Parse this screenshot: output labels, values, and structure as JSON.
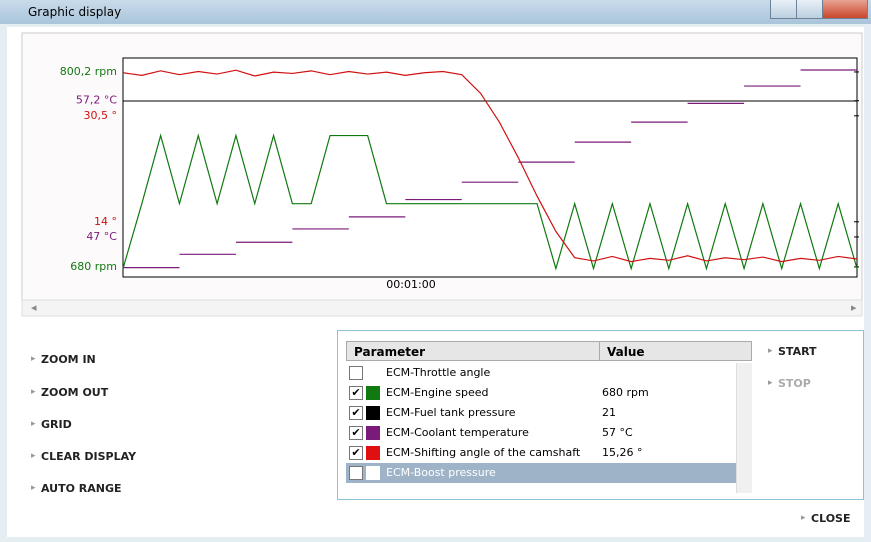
{
  "window": {
    "title": "Graphic display"
  },
  "graph": {
    "x_label": "00:01:00",
    "series": [
      {
        "name": "ECM-Engine speed",
        "color": "#107a10",
        "ylim": [
          673.8,
          808.8
        ],
        "ticks": [
          {
            "value": 800.2,
            "label": "800,2 rpm"
          },
          {
            "value": 680,
            "label": "680 rpm"
          }
        ],
        "values": [
          679,
          719,
          761,
          719,
          761,
          719,
          761,
          719,
          761,
          719,
          719,
          761,
          761,
          761,
          719,
          719,
          719,
          719,
          719,
          719,
          719,
          719,
          719,
          679,
          719,
          679,
          719,
          679,
          719,
          679,
          719,
          679,
          719,
          679,
          719,
          679,
          719,
          679,
          719,
          679
        ]
      },
      {
        "name": "ECM-Coolant temperature",
        "color": "#7a1a7a",
        "ylim": [
          44.0,
          60.4
        ],
        "ticks": [
          {
            "value": 57.2,
            "label": "57,2 °C"
          },
          {
            "value": 47,
            "label": "47 °C"
          }
        ],
        "values": [
          44.7,
          45.7,
          46.6,
          47.6,
          48.5,
          49.8,
          51.1,
          52.6,
          54.1,
          55.6,
          57.0,
          58.3,
          59.5
        ]
      },
      {
        "name": "ECM-Shifting angle of the camshaft",
        "color": "#d01010",
        "ylim": [
          5.4,
          39.5
        ],
        "ticks": [
          {
            "value": 30.5,
            "label": "30,5 °"
          },
          {
            "value": 14,
            "label": "14 °"
          }
        ],
        "values": [
          37.2,
          36.8,
          37.5,
          36.9,
          37.4,
          37.0,
          37.6,
          36.7,
          37.3,
          37.1,
          37.5,
          36.9,
          37.4,
          37.0,
          37.3,
          36.8,
          37.2,
          37.4,
          36.9,
          34.0,
          29.5,
          24.0,
          18.0,
          12.5,
          8.4,
          7.9,
          8.6,
          7.8,
          8.3,
          8.0,
          8.7,
          7.9,
          8.4,
          8.1,
          8.5,
          7.8,
          8.3,
          8.0,
          8.6,
          8.2
        ]
      }
    ]
  },
  "buttons": [
    "ZOOM IN",
    "ZOOM OUT",
    "GRID",
    "CLEAR DISPLAY",
    "AUTO RANGE"
  ],
  "table": {
    "headers": [
      "Parameter",
      "Value"
    ],
    "rows": [
      {
        "checked": false,
        "color": null,
        "name": "ECM-Throttle angle",
        "value": ""
      },
      {
        "checked": true,
        "color": "#107a10",
        "name": "ECM-Engine speed",
        "value": "680 rpm"
      },
      {
        "checked": true,
        "color": "#000000",
        "name": "ECM-Fuel tank pressure",
        "value": "21"
      },
      {
        "checked": true,
        "color": "#7a1a7a",
        "name": "ECM-Coolant temperature",
        "value": "57 °C"
      },
      {
        "checked": true,
        "color": "#e01010",
        "name": "ECM-Shifting angle of the camshaft",
        "value": "15,26 °"
      },
      {
        "checked": false,
        "color": null,
        "name": "ECM-Boost pressure",
        "value": "",
        "selected": true
      }
    ]
  },
  "actions": {
    "start": "START",
    "stop": "STOP",
    "close": "CLOSE"
  }
}
